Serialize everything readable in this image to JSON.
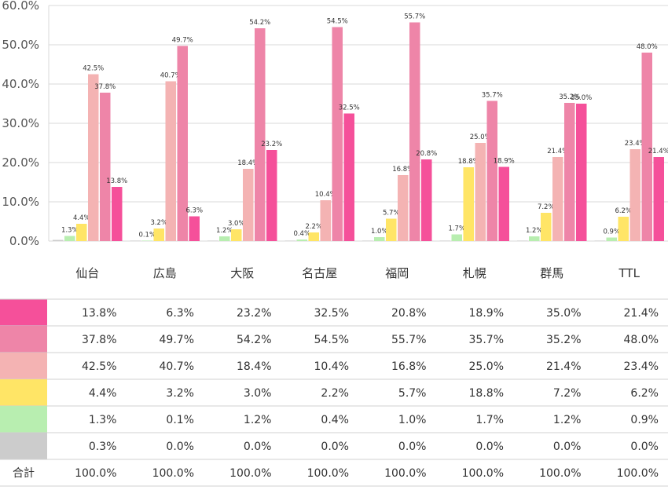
{
  "chart_data": {
    "type": "bar",
    "categories": [
      "仙台",
      "広島",
      "大阪",
      "名古屋",
      "福岡",
      "札幌",
      "群馬",
      "TTL"
    ],
    "ylim": [
      0,
      60
    ],
    "yticks": [
      "0.0%",
      "10.0%",
      "20.0%",
      "30.0%",
      "40.0%",
      "50.0%",
      "60.0%"
    ],
    "grid": true,
    "series_drawn": [
      {
        "color": "#cccccc",
        "values": [
          0.3,
          0.0,
          0.0,
          0.0,
          0.0,
          0.0,
          0.0,
          0.0
        ],
        "labels": [
          "",
          "",
          "",
          "",
          "",
          "",
          "",
          ""
        ]
      },
      {
        "color": "#b8eeb0",
        "values": [
          1.3,
          0.1,
          1.2,
          0.4,
          1.0,
          1.7,
          1.2,
          0.9
        ],
        "labels": [
          "1.3%",
          "0.1%",
          "1.2%",
          "0.4%",
          "1.0%",
          "1.7%",
          "1.2%",
          "0.9%"
        ]
      },
      {
        "color": "#ffe566",
        "values": [
          4.4,
          3.2,
          3.0,
          2.2,
          5.7,
          18.8,
          7.2,
          6.2
        ],
        "labels": [
          "4.4%",
          "3.2%",
          "3.0%",
          "2.2%",
          "5.7%",
          "18.8%",
          "7.2%",
          "6.2%"
        ]
      },
      {
        "color": "#f4b3b3",
        "values": [
          42.5,
          40.7,
          18.4,
          10.4,
          16.8,
          25.0,
          21.4,
          23.4
        ],
        "labels": [
          "42.5%",
          "40.7%",
          "18.4%",
          "10.4%",
          "16.8%",
          "25.0%",
          "21.4%",
          "23.4%"
        ]
      },
      {
        "color": "#ee85a8",
        "values": [
          37.8,
          49.7,
          54.2,
          54.5,
          55.7,
          35.7,
          35.2,
          48.0
        ],
        "labels": [
          "37.8%",
          "49.7%",
          "54.2%",
          "54.5%",
          "55.7%",
          "35.7%",
          "35.2%",
          "48.0%"
        ]
      },
      {
        "color": "#f5509a",
        "values": [
          13.8,
          6.3,
          23.2,
          32.5,
          20.8,
          18.9,
          35.0,
          21.4
        ],
        "labels": [
          "13.8%",
          "6.3%",
          "23.2%",
          "32.5%",
          "20.8%",
          "18.9%",
          "35.0%",
          "21.4%"
        ]
      }
    ],
    "table": {
      "rows": [
        {
          "color": "#f5509a",
          "label": "",
          "cells": [
            "13.8%",
            "6.3%",
            "23.2%",
            "32.5%",
            "20.8%",
            "18.9%",
            "35.0%",
            "21.4%"
          ]
        },
        {
          "color": "#ee85a8",
          "label": "",
          "cells": [
            "37.8%",
            "49.7%",
            "54.2%",
            "54.5%",
            "55.7%",
            "35.7%",
            "35.2%",
            "48.0%"
          ]
        },
        {
          "color": "#f4b3b3",
          "label": "",
          "cells": [
            "42.5%",
            "40.7%",
            "18.4%",
            "10.4%",
            "16.8%",
            "25.0%",
            "21.4%",
            "23.4%"
          ]
        },
        {
          "color": "#ffe566",
          "label": "",
          "cells": [
            "4.4%",
            "3.2%",
            "3.0%",
            "2.2%",
            "5.7%",
            "18.8%",
            "7.2%",
            "6.2%"
          ]
        },
        {
          "color": "#b8eeb0",
          "label": "",
          "cells": [
            "1.3%",
            "0.1%",
            "1.2%",
            "0.4%",
            "1.0%",
            "1.7%",
            "1.2%",
            "0.9%"
          ]
        },
        {
          "color": "#cccccc",
          "label": "",
          "cells": [
            "0.3%",
            "0.0%",
            "0.0%",
            "0.0%",
            "0.0%",
            "0.0%",
            "0.0%",
            "0.0%"
          ]
        },
        {
          "color": "",
          "label": "合計",
          "cells": [
            "100.0%",
            "100.0%",
            "100.0%",
            "100.0%",
            "100.0%",
            "100.0%",
            "100.0%",
            "100.0%"
          ]
        }
      ]
    }
  }
}
